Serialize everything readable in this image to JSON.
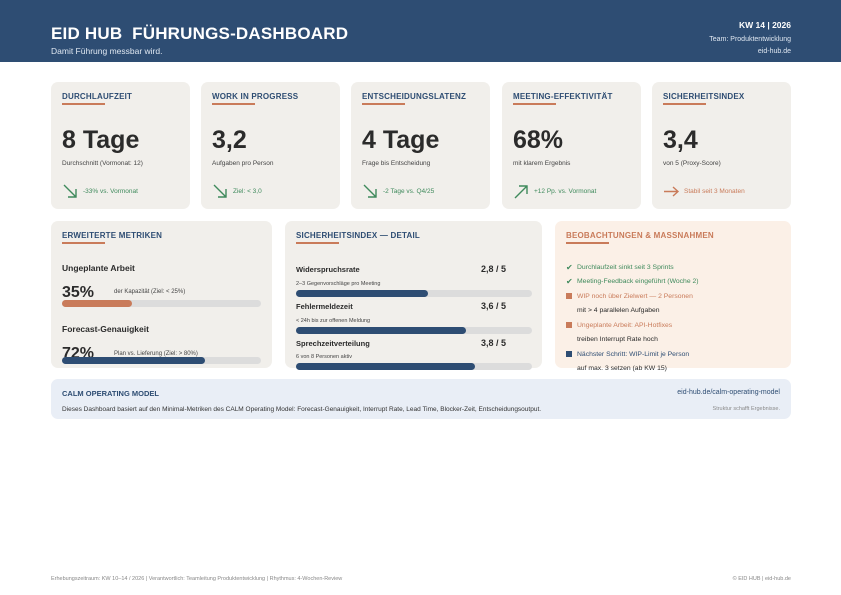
{
  "header": {
    "title": "EID HUB  FÜHRUNGS-DASHBOARD",
    "subtitle": "Damit Führung messbar wird.",
    "week": "KW 14 | 2026",
    "team": "Team: Produktentwicklung",
    "site": "eid-hub.de"
  },
  "kpis": [
    {
      "label": "DURCHLAUFZEIT",
      "value": "8 Tage",
      "desc": "Durchschnitt (Vormonat: 12)",
      "trend_icon": "arrow-down-right-icon",
      "trend": "-33% vs. Vormonat",
      "trend_color": "#3f8a5c"
    },
    {
      "label": "WORK IN PROGRESS",
      "value": "3,2",
      "desc": "Aufgaben pro Person",
      "trend_icon": "arrow-down-right-icon",
      "trend": "Ziel: < 3,0",
      "trend_color": "#3f8a5c"
    },
    {
      "label": "ENTSCHEIDUNGSLATENZ",
      "value": "4 Tage",
      "desc": "Frage bis Entscheidung",
      "trend_icon": "arrow-down-right-icon",
      "trend": "-2 Tage vs. Q4/25",
      "trend_color": "#3f8a5c"
    },
    {
      "label": "MEETING-EFFEKTIVITÄT",
      "value": "68%",
      "desc": "mit klarem Ergebnis",
      "trend_icon": "arrow-up-right-icon",
      "trend": "+12 Pp. vs. Vormonat",
      "trend_color": "#3f8a5c"
    },
    {
      "label": "SICHERHEITSINDEX",
      "value": "3,4",
      "desc": "von 5 (Proxy-Score)",
      "trend_icon": "arrow-right-icon",
      "trend": "Stabil seit 3 Monaten",
      "trend_color": "#c97b5a"
    }
  ],
  "extended": {
    "title": "ERWEITERTE METRIKEN",
    "metrics": [
      {
        "name": "Ungeplante Arbeit",
        "value": "35%",
        "note": "der Kapazität (Ziel: < 25%)",
        "fraction": 0.35,
        "color": "#c97b5a"
      },
      {
        "name": "Forecast-Genauigkeit",
        "value": "72%",
        "note": "Plan vs. Lieferung (Ziel: > 80%)",
        "fraction": 0.72,
        "color": "#2e4d73"
      }
    ]
  },
  "safety": {
    "title": "SICHERHEITSINDEX — DETAIL",
    "items": [
      {
        "name": "Widerspruchsrate",
        "score": "2,8 / 5",
        "note": "2–3 Gegenvorschläge pro Meeting",
        "fraction": 0.56
      },
      {
        "name": "Fehlermeldezeit",
        "score": "3,6 / 5",
        "note": "< 24h bis zur offenen Meldung",
        "fraction": 0.72
      },
      {
        "name": "Sprechzeitverteilung",
        "score": "3,8 / 5",
        "note": "6 von 8 Personen aktiv",
        "fraction": 0.76
      }
    ],
    "bar_color": "#2e4d73"
  },
  "observations": {
    "title": "BEOBACHTUNGEN & MASSNAHMEN",
    "items": [
      {
        "marker": "check",
        "text": "Durchlaufzeit sinkt seit 3 Sprints",
        "color": "#3f8a5c"
      },
      {
        "marker": "check",
        "text": "Meeting-Feedback eingeführt (Woche 2)",
        "color": "#3f8a5c"
      },
      {
        "marker": "square",
        "text": "WIP noch über Zielwert — 2 Personen",
        "color": "#c97b5a"
      },
      {
        "marker": "none",
        "text": "mit > 4 parallelen Aufgaben",
        "color": "#2b2b2b"
      },
      {
        "marker": "square",
        "text": "Ungeplante Arbeit: API-Hotfixes",
        "color": "#c97b5a"
      },
      {
        "marker": "none",
        "text": "treiben Interrupt Rate hoch",
        "color": "#2b2b2b"
      },
      {
        "marker": "square-blue",
        "text": "Nächster Schritt: WIP-Limit je Person",
        "color": "#2e4d73"
      },
      {
        "marker": "none",
        "text": "auf max. 3 setzen (ab KW 15)",
        "color": "#2b2b2b"
      }
    ]
  },
  "calm": {
    "title": "CALM OPERATING MODEL",
    "link": "eid-hub.de/calm-operating-model",
    "desc": "Dieses Dashboard basiert auf den Minimal-Metriken des CALM Operating Model: Forecast-Genauigkeit, Interrupt Rate, Lead Time, Blocker-Zeit, Entscheidungsoutput.",
    "slogan": "Struktur schafft Ergebnisse."
  },
  "footer": {
    "left": "Erhebungszeitraum: KW 10–14 / 2026  |  Verantwortlich: Teamleitung Produktentwicklung  |  Rhythmus: 4-Wochen-Review",
    "right": "© EID HUB  |  eid-hub.de"
  }
}
